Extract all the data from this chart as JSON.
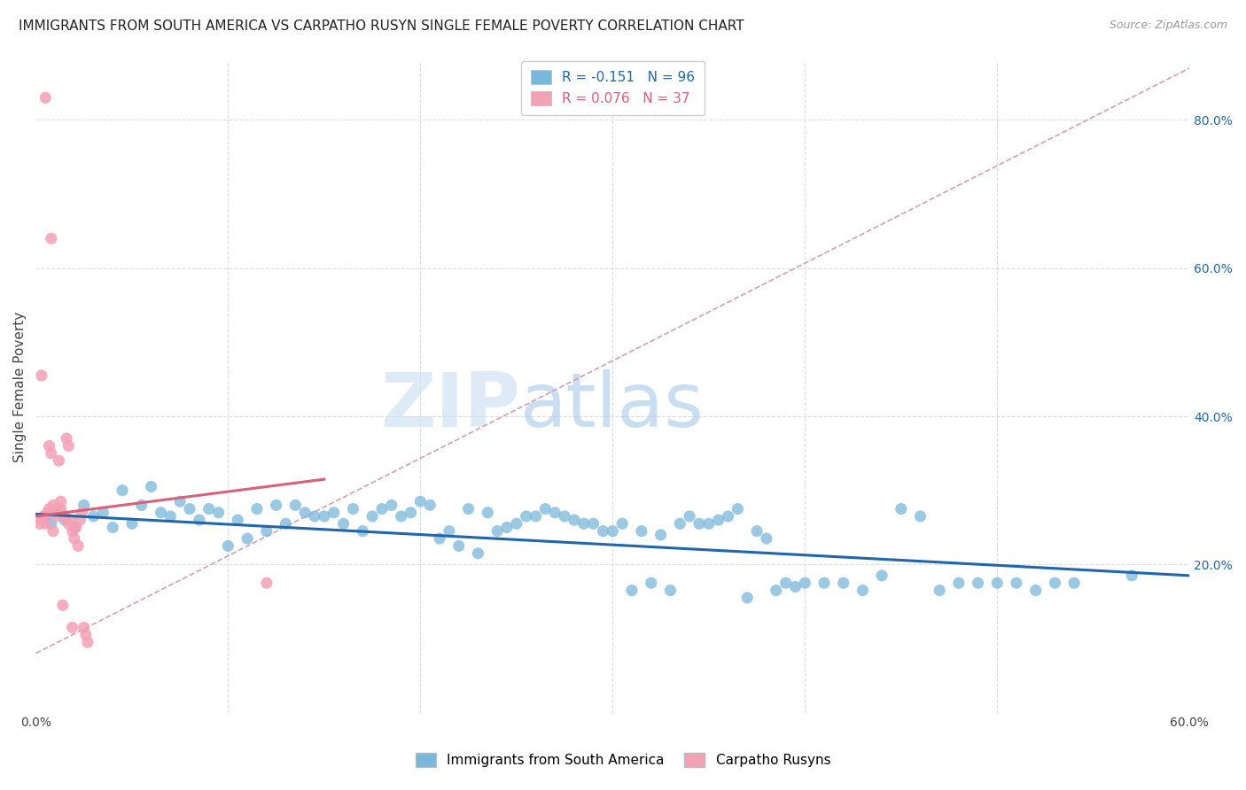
{
  "title": "IMMIGRANTS FROM SOUTH AMERICA VS CARPATHO RUSYN SINGLE FEMALE POVERTY CORRELATION CHART",
  "source": "Source: ZipAtlas.com",
  "ylabel": "Single Female Poverty",
  "xlim": [
    0.0,
    0.6
  ],
  "ylim": [
    0.0,
    0.88
  ],
  "xticks": [
    0.0,
    0.1,
    0.2,
    0.3,
    0.4,
    0.5,
    0.6
  ],
  "yticks": [
    0.0,
    0.2,
    0.4,
    0.6,
    0.8
  ],
  "blue_color": "#7ab8db",
  "pink_color": "#f4a0b5",
  "blue_line_color": "#2166ac",
  "pink_line_color": "#d9607a",
  "dashed_line_color": "#d4a0b0",
  "watermark_zip": "ZIP",
  "watermark_atlas": "atlas",
  "blue_scatter_x": [
    0.005,
    0.008,
    0.01,
    0.015,
    0.02,
    0.025,
    0.03,
    0.035,
    0.04,
    0.045,
    0.05,
    0.055,
    0.06,
    0.065,
    0.07,
    0.075,
    0.08,
    0.085,
    0.09,
    0.095,
    0.1,
    0.105,
    0.11,
    0.115,
    0.12,
    0.125,
    0.13,
    0.135,
    0.14,
    0.145,
    0.15,
    0.155,
    0.16,
    0.165,
    0.17,
    0.175,
    0.18,
    0.185,
    0.19,
    0.195,
    0.2,
    0.205,
    0.21,
    0.215,
    0.22,
    0.225,
    0.23,
    0.235,
    0.24,
    0.245,
    0.25,
    0.255,
    0.26,
    0.265,
    0.27,
    0.275,
    0.28,
    0.285,
    0.29,
    0.295,
    0.3,
    0.305,
    0.31,
    0.315,
    0.32,
    0.325,
    0.33,
    0.335,
    0.34,
    0.345,
    0.35,
    0.355,
    0.36,
    0.365,
    0.37,
    0.375,
    0.38,
    0.385,
    0.39,
    0.395,
    0.4,
    0.41,
    0.42,
    0.43,
    0.44,
    0.45,
    0.46,
    0.47,
    0.48,
    0.49,
    0.5,
    0.51,
    0.52,
    0.53,
    0.54,
    0.57
  ],
  "blue_scatter_y": [
    0.265,
    0.255,
    0.27,
    0.26,
    0.25,
    0.28,
    0.265,
    0.27,
    0.25,
    0.3,
    0.255,
    0.28,
    0.305,
    0.27,
    0.265,
    0.285,
    0.275,
    0.26,
    0.275,
    0.27,
    0.225,
    0.26,
    0.235,
    0.275,
    0.245,
    0.28,
    0.255,
    0.28,
    0.27,
    0.265,
    0.265,
    0.27,
    0.255,
    0.275,
    0.245,
    0.265,
    0.275,
    0.28,
    0.265,
    0.27,
    0.285,
    0.28,
    0.235,
    0.245,
    0.225,
    0.275,
    0.215,
    0.27,
    0.245,
    0.25,
    0.255,
    0.265,
    0.265,
    0.275,
    0.27,
    0.265,
    0.26,
    0.255,
    0.255,
    0.245,
    0.245,
    0.255,
    0.165,
    0.245,
    0.175,
    0.24,
    0.165,
    0.255,
    0.265,
    0.255,
    0.255,
    0.26,
    0.265,
    0.275,
    0.155,
    0.245,
    0.235,
    0.165,
    0.175,
    0.17,
    0.175,
    0.175,
    0.175,
    0.165,
    0.185,
    0.275,
    0.265,
    0.165,
    0.175,
    0.175,
    0.175,
    0.175,
    0.165,
    0.175,
    0.175,
    0.185
  ],
  "pink_scatter_x": [
    0.002,
    0.003,
    0.004,
    0.005,
    0.006,
    0.007,
    0.008,
    0.009,
    0.01,
    0.011,
    0.012,
    0.013,
    0.014,
    0.015,
    0.016,
    0.017,
    0.018,
    0.019,
    0.02,
    0.021,
    0.022,
    0.023,
    0.024,
    0.025,
    0.026,
    0.027,
    0.003,
    0.005,
    0.007,
    0.009,
    0.011,
    0.013,
    0.015,
    0.017,
    0.019,
    0.12,
    0.008
  ],
  "pink_scatter_y": [
    0.255,
    0.26,
    0.265,
    0.83,
    0.27,
    0.275,
    0.35,
    0.28,
    0.27,
    0.265,
    0.34,
    0.275,
    0.145,
    0.265,
    0.37,
    0.255,
    0.26,
    0.245,
    0.235,
    0.25,
    0.225,
    0.26,
    0.27,
    0.115,
    0.105,
    0.095,
    0.455,
    0.255,
    0.36,
    0.245,
    0.275,
    0.285,
    0.265,
    0.36,
    0.115,
    0.175,
    0.64
  ],
  "blue_trendline_x": [
    0.0,
    0.6
  ],
  "blue_trendline_y": [
    0.268,
    0.185
  ],
  "pink_trendline_x": [
    0.0,
    0.15
  ],
  "pink_trendline_y": [
    0.265,
    0.315
  ],
  "dashed_trendline_x": [
    0.0,
    0.6
  ],
  "dashed_trendline_y": [
    0.08,
    0.87
  ]
}
